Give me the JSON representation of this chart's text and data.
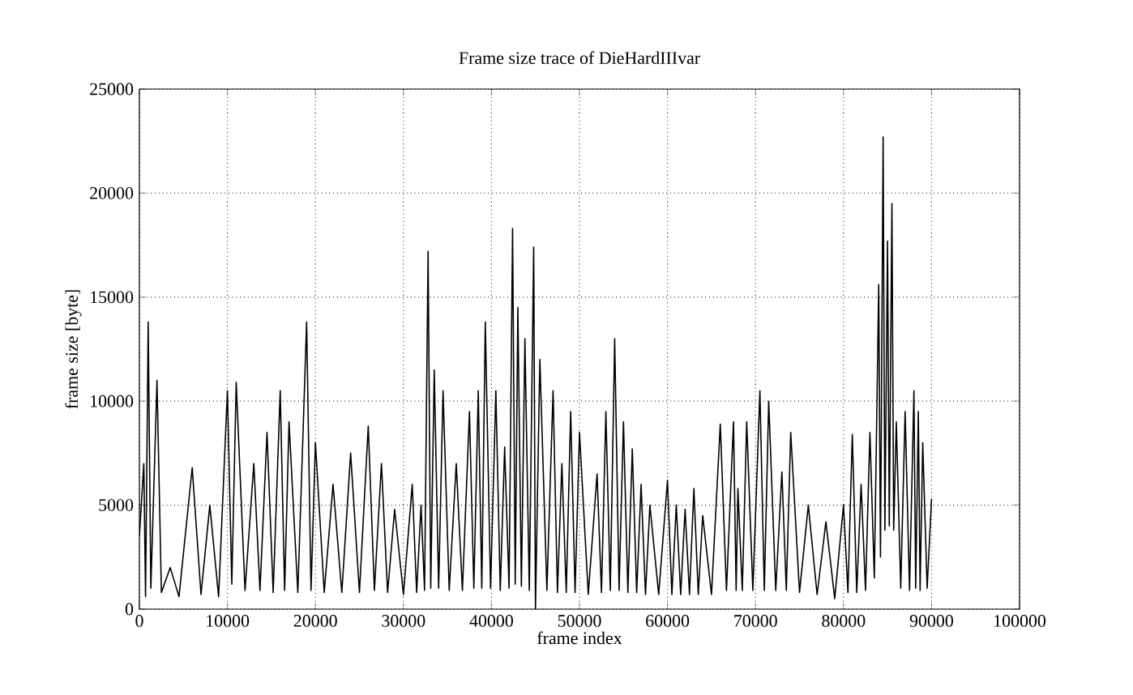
{
  "chart_data": {
    "type": "line",
    "title": "Frame size trace of DieHardIIIvar",
    "xlabel": "frame index",
    "ylabel": "frame size [byte]",
    "xlim": [
      0,
      100000
    ],
    "ylim": [
      0,
      25000
    ],
    "xticks": [
      0,
      10000,
      20000,
      30000,
      40000,
      50000,
      60000,
      70000,
      80000,
      90000,
      100000
    ],
    "yticks": [
      0,
      5000,
      10000,
      15000,
      20000,
      25000
    ],
    "grid": true,
    "marker": "none",
    "line_style": "solid",
    "series": [
      {
        "color": "#000000",
        "x": [
          0,
          500,
          700,
          1000,
          1300,
          2000,
          2500,
          3500,
          4500,
          6000,
          7000,
          8000,
          9000,
          10000,
          10500,
          11000,
          12000,
          13000,
          13700,
          14500,
          15200,
          16000,
          16500,
          17000,
          18000,
          19000,
          19500,
          20000,
          21000,
          22000,
          23000,
          24000,
          25000,
          26000,
          26700,
          27500,
          28200,
          29000,
          30000,
          31000,
          31500,
          32000,
          32400,
          32800,
          33100,
          33500,
          34000,
          34500,
          35200,
          36000,
          36700,
          37500,
          38000,
          38500,
          38900,
          39300,
          39900,
          40500,
          41000,
          41500,
          42000,
          42400,
          42700,
          43000,
          43400,
          43800,
          44300,
          44800,
          45000,
          45500,
          46300,
          47000,
          47500,
          48000,
          48500,
          49000,
          49500,
          50000,
          51000,
          52000,
          52500,
          53000,
          53500,
          54000,
          54500,
          55000,
          55500,
          56000,
          56500,
          57000,
          57500,
          58000,
          59000,
          60000,
          60500,
          61000,
          61500,
          62000,
          62500,
          63000,
          63500,
          64000,
          65000,
          66000,
          66700,
          67500,
          67800,
          68000,
          68500,
          69000,
          69700,
          70500,
          71000,
          71500,
          72300,
          73000,
          73500,
          74000,
          75000,
          76000,
          77000,
          78000,
          79000,
          80000,
          80500,
          81000,
          81500,
          82000,
          82500,
          83000,
          83500,
          84000,
          84200,
          84500,
          84700,
          85000,
          85200,
          85500,
          85700,
          86000,
          86500,
          87000,
          87500,
          88000,
          88200,
          88500,
          88700,
          89000,
          89500,
          90000
        ],
        "values": [
          3500,
          7000,
          600,
          13800,
          1000,
          11000,
          800,
          2000,
          600,
          6800,
          700,
          5000,
          600,
          10500,
          1200,
          10900,
          900,
          7000,
          900,
          8500,
          800,
          10500,
          900,
          9000,
          800,
          13800,
          900,
          8000,
          800,
          6000,
          800,
          7500,
          800,
          8800,
          900,
          7000,
          800,
          4800,
          700,
          6000,
          800,
          5000,
          900,
          17200,
          1000,
          11500,
          1000,
          10500,
          900,
          7000,
          900,
          9500,
          1000,
          10500,
          1000,
          13800,
          1000,
          10500,
          900,
          7800,
          1000,
          18300,
          1200,
          14500,
          1100,
          13000,
          900,
          17400,
          0,
          12000,
          900,
          10500,
          800,
          7000,
          800,
          9500,
          800,
          8500,
          700,
          6500,
          800,
          9500,
          900,
          13000,
          900,
          9000,
          800,
          7700,
          800,
          6000,
          700,
          5000,
          700,
          6200,
          700,
          5000,
          700,
          4800,
          700,
          5800,
          700,
          4500,
          700,
          8900,
          900,
          9000,
          900,
          5800,
          900,
          9000,
          900,
          10500,
          900,
          10000,
          900,
          6600,
          900,
          8500,
          800,
          5000,
          700,
          4200,
          500,
          5000,
          800,
          8400,
          800,
          6000,
          900,
          8500,
          1500,
          15600,
          2500,
          22700,
          3800,
          17700,
          4000,
          19500,
          3800,
          9000,
          1000,
          9500,
          900,
          10500,
          1000,
          9500,
          900,
          8000,
          1000,
          5300
        ]
      }
    ]
  }
}
